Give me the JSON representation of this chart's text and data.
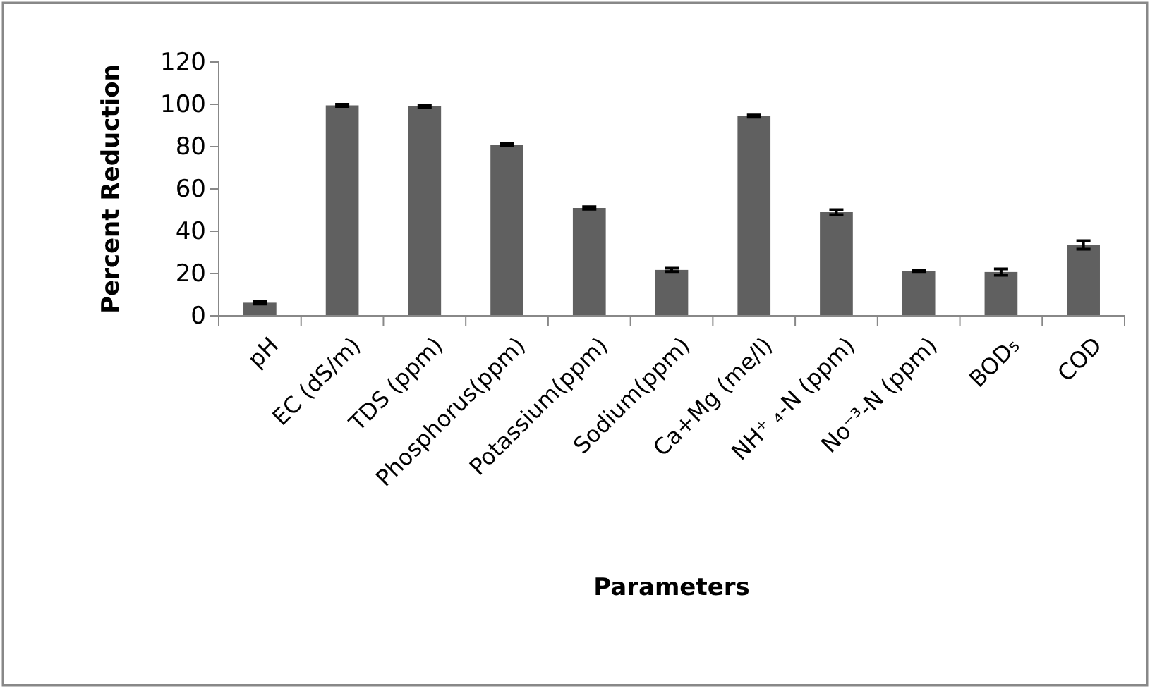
{
  "chart_data": {
    "type": "bar",
    "xlabel": "Parameters",
    "ylabel": "Percent Reduction",
    "categories": [
      "pH",
      "EC (dS/m)",
      "TDS (ppm)",
      "Phosphorus(ppm)",
      "Potassium(ppm)",
      "Sodium(ppm)",
      "Ca+Mg (me/l)",
      "NH⁺ ₄-N (ppm)",
      "No⁻³-N (ppm)",
      "BOD₅",
      "COD"
    ],
    "values": [
      6.2,
      99.5,
      99,
      81,
      51,
      21.7,
      94.4,
      49,
      21.3,
      20.7,
      33.5
    ],
    "errors": [
      0.6,
      0.5,
      0.6,
      0.5,
      0.6,
      0.8,
      0.5,
      1.2,
      0.4,
      1.5,
      2
    ],
    "color": "#606060",
    "ylim": [
      0,
      120
    ],
    "yticks": [
      0,
      20,
      40,
      60,
      80,
      100,
      120
    ],
    "grid": false
  }
}
